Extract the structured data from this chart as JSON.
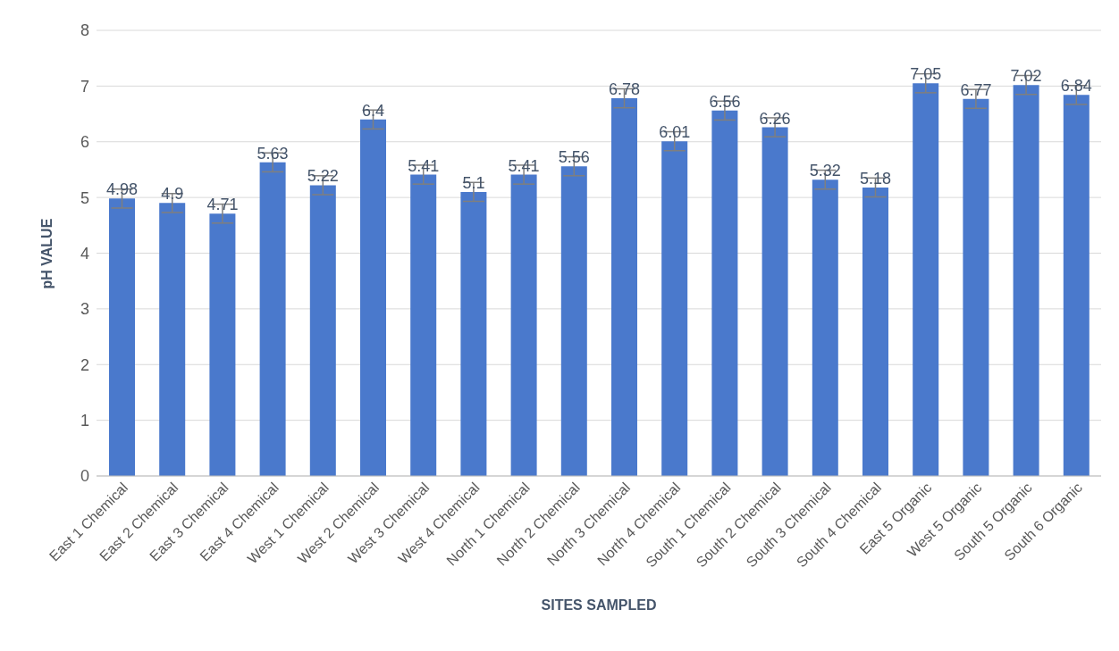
{
  "chart_data": {
    "type": "bar",
    "xlabel": "SITES SAMPLED",
    "ylabel": "pH VALUE",
    "categories": [
      "East 1 Chemical",
      "East 2 Chemical",
      "East 3 Chemical",
      "East 4 Chemical",
      "West 1 Chemical",
      "West 2 Chemical",
      "West 3 Chemical",
      "West 4 Chemical",
      "North 1 Chemical",
      "North 2 Chemical",
      "North 3 Chemical",
      "North 4 Chemical",
      "South 1 Chemical",
      "South 2 Chemical",
      "South 3 Chemical",
      "South 4 Chemical",
      "East 5 Organic",
      "West 5 Organic",
      "South 5 Organic",
      "South 6 Organic"
    ],
    "values": [
      4.98,
      4.9,
      4.71,
      5.63,
      5.22,
      6.4,
      5.41,
      5.1,
      5.41,
      5.56,
      6.78,
      6.01,
      6.56,
      6.26,
      5.32,
      5.18,
      7.05,
      6.77,
      7.02,
      6.84
    ],
    "errors": [
      0.17,
      0.17,
      0.17,
      0.17,
      0.17,
      0.17,
      0.17,
      0.17,
      0.17,
      0.17,
      0.17,
      0.17,
      0.17,
      0.17,
      0.17,
      0.17,
      0.17,
      0.17,
      0.17,
      0.17
    ],
    "color": "#4a79cc",
    "ylim": [
      0,
      8
    ],
    "yticks": [
      0,
      1,
      2,
      3,
      4,
      5,
      6,
      7,
      8
    ],
    "grid": "y",
    "data_labels": true,
    "legend": false
  }
}
